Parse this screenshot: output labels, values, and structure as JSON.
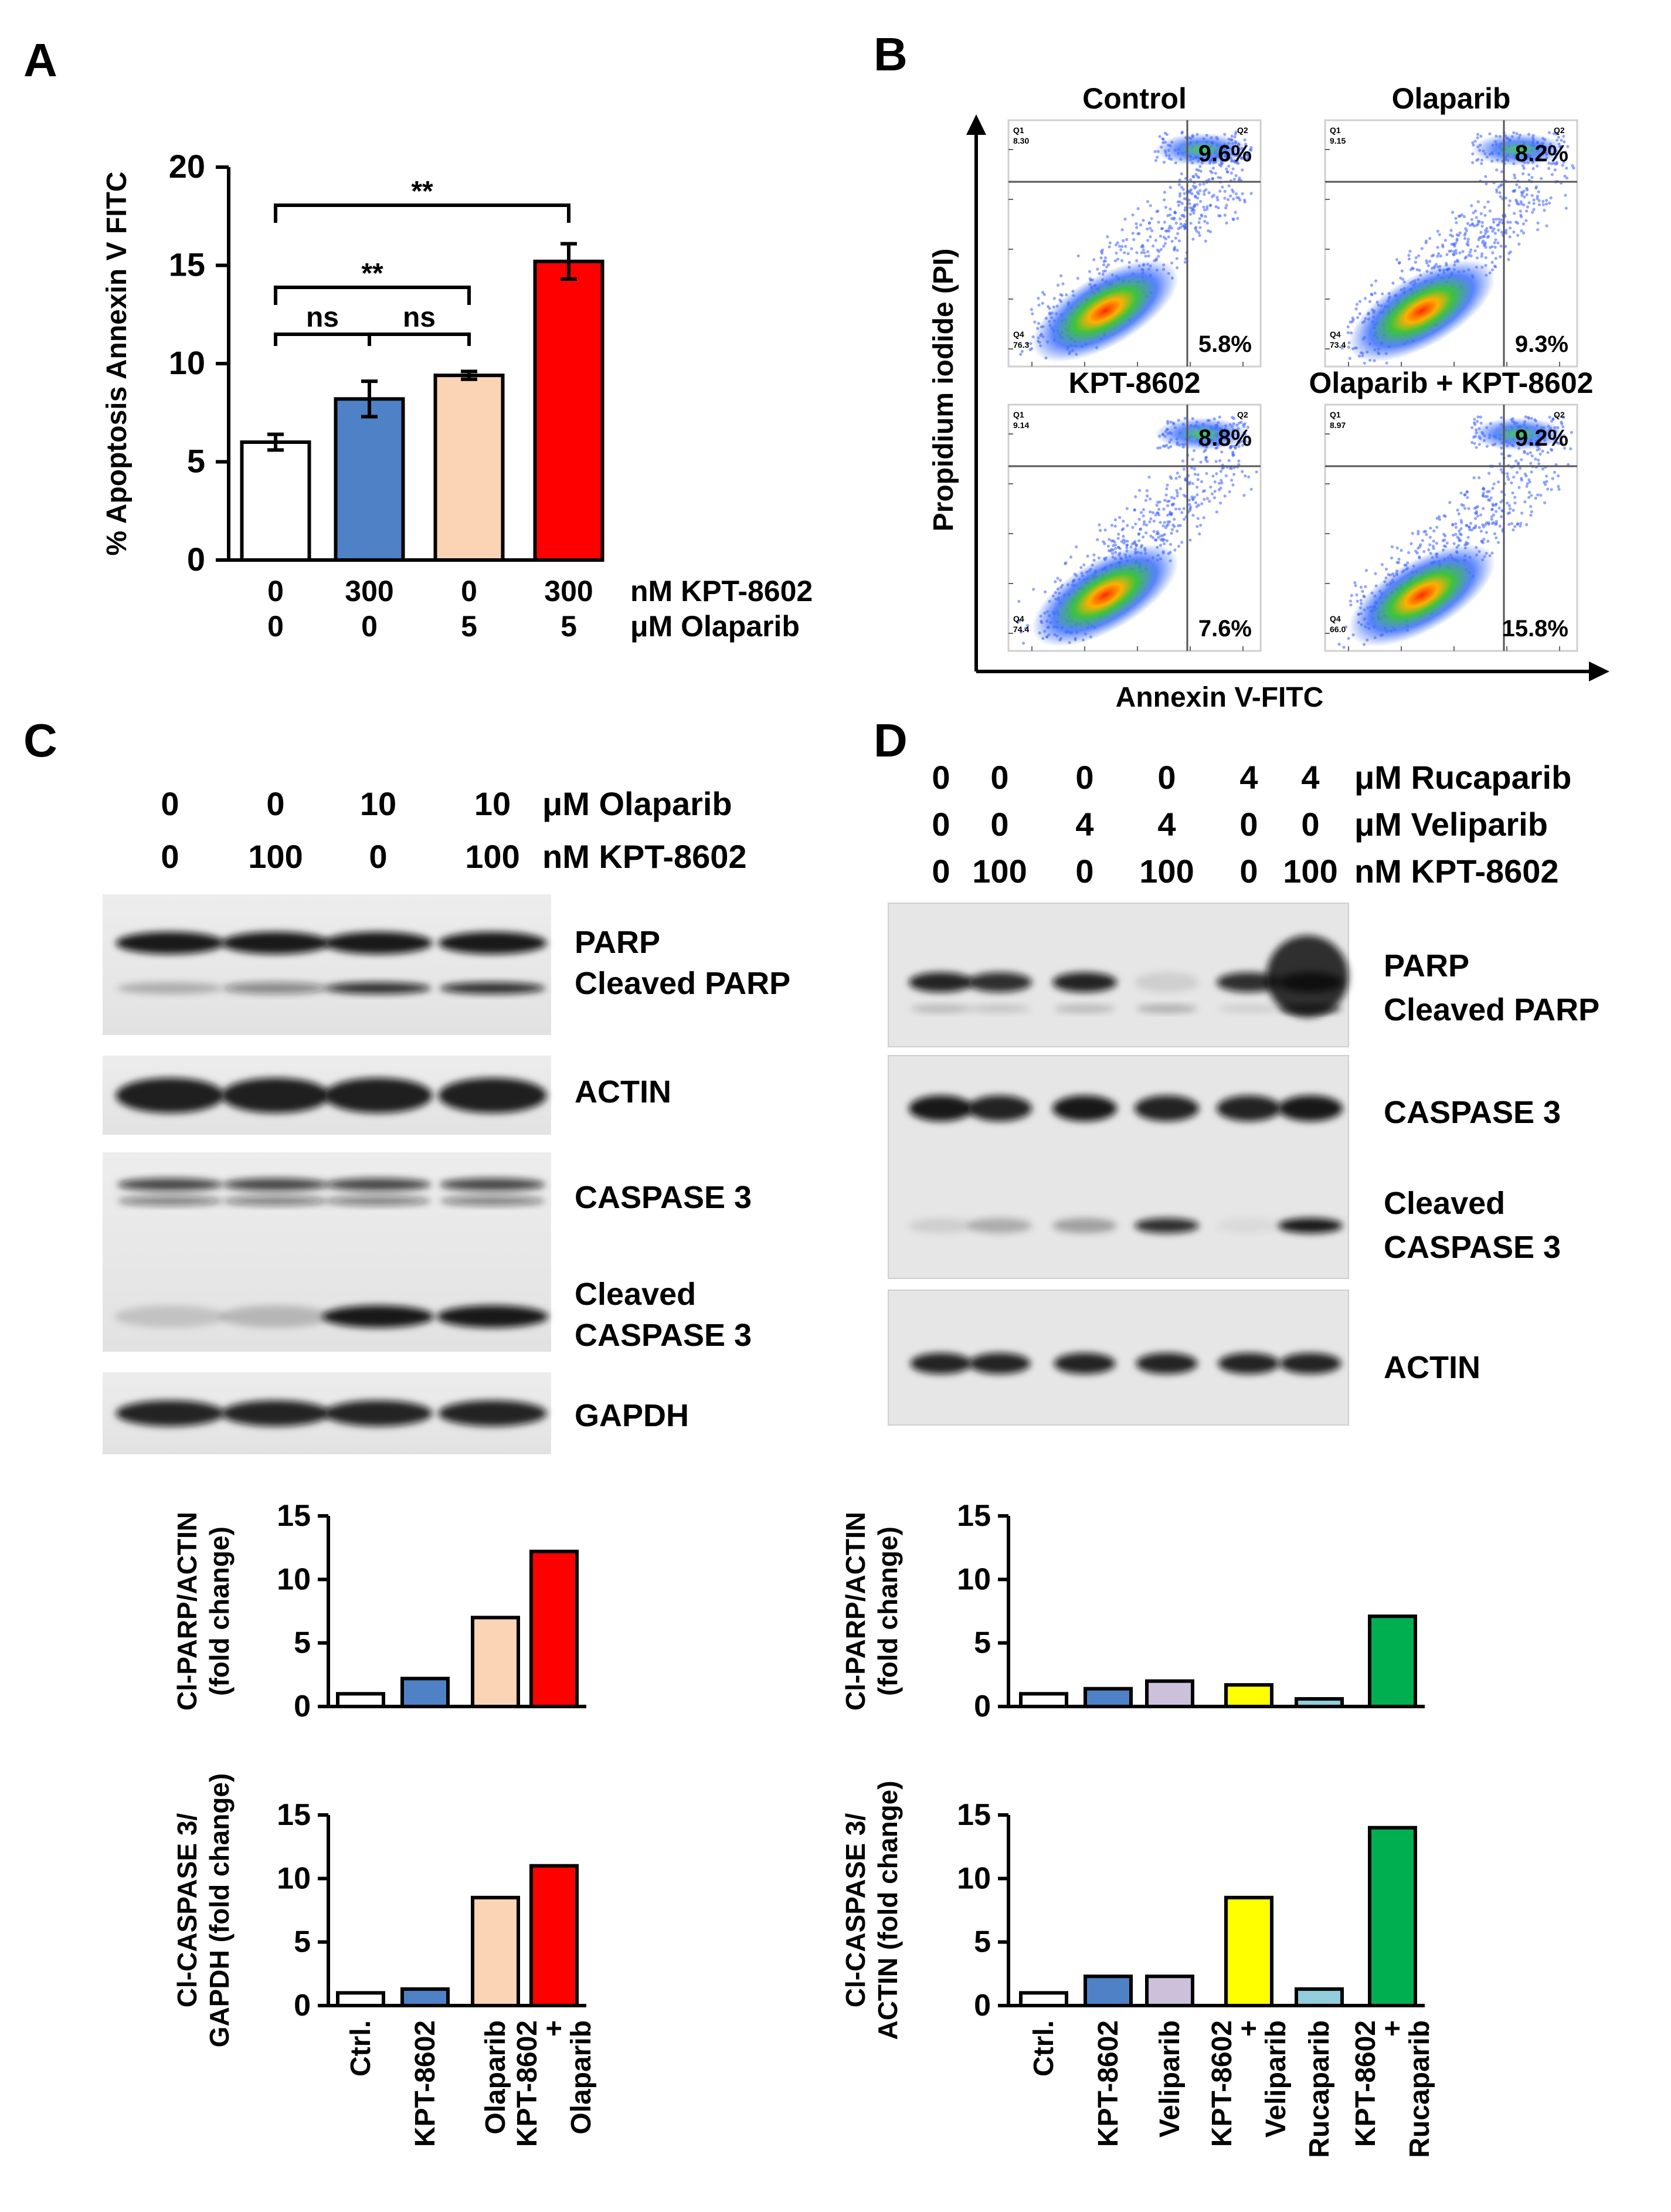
{
  "panels": {
    "A": "A",
    "B": "B",
    "C": "C",
    "D": "D"
  },
  "panelA": {
    "ylabel": "% Apoptosis Annexin V FITC",
    "yticks": [
      "0",
      "5",
      "10",
      "15",
      "20"
    ],
    "row1": [
      "0",
      "300",
      "0",
      "300"
    ],
    "row1_label": "nM KPT-8602",
    "row2": [
      "0",
      "0",
      "5",
      "5"
    ],
    "row2_label": "μM Olaparib",
    "sig": [
      {
        "text": "ns"
      },
      {
        "text": "ns"
      },
      {
        "text": "**"
      },
      {
        "text": "**"
      }
    ]
  },
  "panelB": {
    "ylabel": "Propidium iodide (PI)",
    "xlabel": "Annexin V-FITC",
    "plots": [
      {
        "title": "Control",
        "q2": "9.6%",
        "q3": "5.8%",
        "q1v": "8.30",
        "q4v": "76.3"
      },
      {
        "title": "Olaparib",
        "q2": "8.2%",
        "q3": "9.3%",
        "q1v": "9.15",
        "q4v": "73.4"
      },
      {
        "title": "KPT-8602",
        "q2": "8.8%",
        "q3": "7.6%",
        "q1v": "9.14",
        "q4v": "74.4"
      },
      {
        "title": "Olaparib + KPT-8602",
        "q2": "9.2%",
        "q3": "15.8%",
        "q1v": "8.97",
        "q4v": "66.0"
      }
    ],
    "q_labels": {
      "q1": "Q1",
      "q2": "Q2",
      "q4": "Q4"
    }
  },
  "panelC": {
    "row1": [
      "0",
      "0",
      "10",
      "10"
    ],
    "row1_label": "μM Olaparib",
    "row2": [
      "0",
      "100",
      "0",
      "100"
    ],
    "row2_label": "nM KPT-8602",
    "blots": [
      "PARP",
      "Cleaved PARP",
      "ACTIN",
      "CASPASE 3",
      "Cleaved",
      "CASPASE 3",
      "GAPDH"
    ]
  },
  "panelD": {
    "row1": [
      "0",
      "0",
      "0",
      "0",
      "4",
      "4"
    ],
    "row1_label": "μM Rucaparib",
    "row2": [
      "0",
      "0",
      "4",
      "4",
      "0",
      "0"
    ],
    "row2_label": "μM Veliparib",
    "row3": [
      "0",
      "100",
      "0",
      "100",
      "0",
      "100"
    ],
    "row3_label": "nM KPT-8602",
    "blots": [
      "PARP",
      "Cleaved PARP",
      "CASPASE 3",
      "Cleaved",
      "CASPASE 3",
      "ACTIN"
    ]
  },
  "quantC": {
    "ylabel_top_1": "Cl-PARP/ACTIN",
    "ylabel_top_2": "(fold change)",
    "ylabel_bot_1": "Cl-CASPASE 3/",
    "ylabel_bot_2": "GAPDH (fold change)",
    "yticks": [
      "0",
      "5",
      "10",
      "15"
    ],
    "categories": [
      "Ctrl.",
      "KPT-8602",
      "Olaparib",
      "KPT-8602",
      "+",
      "Olaparib"
    ]
  },
  "quantD": {
    "ylabel_top_1": "Cl-PARP/ACTIN",
    "ylabel_top_2": "(fold change)",
    "ylabel_bot_1": "Cl-CASPASE 3/",
    "ylabel_bot_2": "ACTIN (fold change)",
    "yticks": [
      "0",
      "5",
      "10",
      "15"
    ],
    "categories": [
      "Ctrl.",
      "KPT-8602",
      "Veliparib",
      "KPT-8602",
      "+",
      "Veliparib",
      "Rucaparib",
      "KPT-8602",
      "+",
      "Rucaparib"
    ]
  },
  "chart_data": [
    {
      "type": "bar",
      "categories": [
        "0/0",
        "300/0",
        "0/5",
        "300/5"
      ],
      "values": [
        6.0,
        8.2,
        9.4,
        15.2
      ],
      "errors": [
        0.4,
        0.9,
        0.2,
        0.9
      ],
      "ylim": [
        0,
        20
      ],
      "colors": [
        "#ffffff",
        "#4f81c6",
        "#fbd3b5",
        "#ff0000"
      ]
    },
    {
      "type": "bar",
      "categories": [
        "Ctrl.",
        "KPT-8602",
        "Olaparib",
        "KPT-8602 + Olaparib"
      ],
      "values": [
        1.0,
        2.2,
        7.0,
        12.2
      ],
      "ylim": [
        0,
        15
      ],
      "colors": [
        "#ffffff",
        "#4f81c6",
        "#fbd3b5",
        "#ff0000"
      ]
    },
    {
      "type": "bar",
      "categories": [
        "Ctrl.",
        "KPT-8602",
        "Olaparib",
        "KPT-8602 + Olaparib"
      ],
      "values": [
        1.0,
        1.3,
        8.5,
        11.0
      ],
      "ylim": [
        0,
        15
      ],
      "colors": [
        "#ffffff",
        "#4f81c6",
        "#fbd3b5",
        "#ff0000"
      ]
    },
    {
      "type": "bar",
      "categories": [
        "Ctrl.",
        "KPT-8602",
        "Veliparib",
        "KPT-8602 + Veliparib",
        "Rucaparib",
        "KPT-8602 + Rucaparib"
      ],
      "values": [
        1.0,
        1.4,
        2.0,
        1.7,
        0.6,
        7.1
      ],
      "ylim": [
        0,
        15
      ],
      "colors": [
        "#ffffff",
        "#4f81c6",
        "#ccc0da",
        "#ffff00",
        "#92cddc",
        "#00b050"
      ]
    },
    {
      "type": "bar",
      "categories": [
        "Ctrl.",
        "KPT-8602",
        "Veliparib",
        "KPT-8602 + Veliparib",
        "Rucaparib",
        "KPT-8602 + Rucaparib"
      ],
      "values": [
        1.0,
        2.3,
        2.3,
        8.5,
        1.3,
        14.0
      ],
      "ylim": [
        0,
        15
      ],
      "colors": [
        "#ffffff",
        "#4f81c6",
        "#ccc0da",
        "#ffff00",
        "#92cddc",
        "#00b050"
      ]
    }
  ]
}
